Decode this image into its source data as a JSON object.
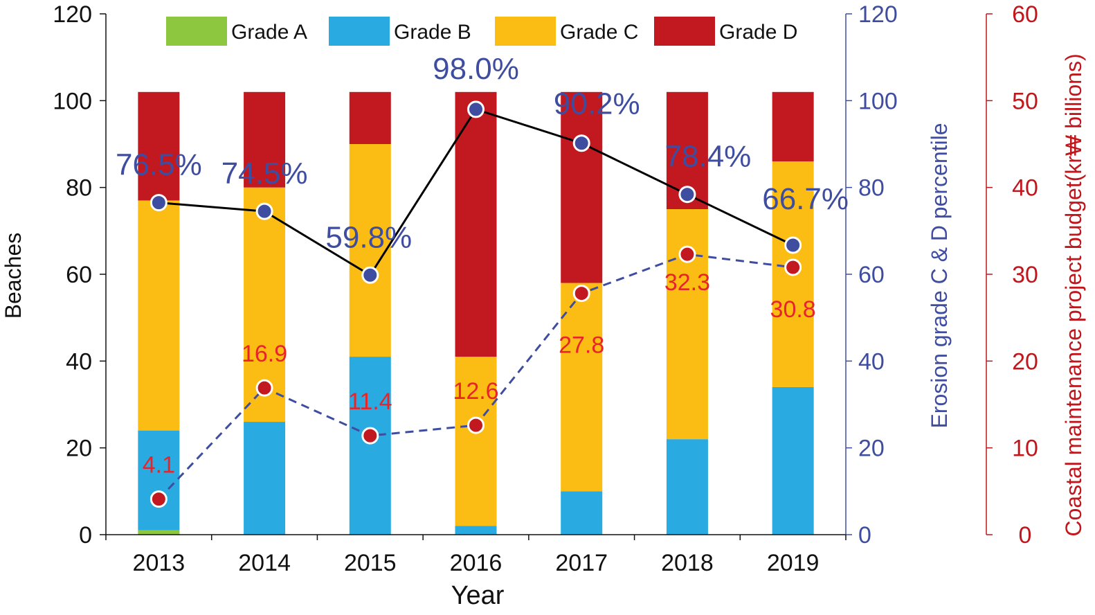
{
  "chart_data": {
    "type": "bar",
    "stacked": true,
    "categories": [
      "2013",
      "2014",
      "2015",
      "2016",
      "2017",
      "2018",
      "2019"
    ],
    "series": [
      {
        "name": "Grade A",
        "color": "#8dc63f",
        "values": [
          1,
          0,
          0,
          0,
          0,
          0,
          0
        ]
      },
      {
        "name": "Grade B",
        "color": "#29abe2",
        "values": [
          23,
          26,
          41,
          2,
          10,
          22,
          34
        ]
      },
      {
        "name": "Grade C",
        "color": "#fbbd13",
        "values": [
          53,
          54,
          49,
          39,
          48,
          53,
          52
        ]
      },
      {
        "name": "Grade D",
        "color": "#c1191f",
        "values": [
          25,
          22,
          12,
          61,
          44,
          27,
          16
        ]
      }
    ],
    "lines": [
      {
        "name": "Erosion grade C & D percentile",
        "axis": "right1",
        "style": "solid",
        "line_color": "#000000",
        "marker_color": "#3f4da0",
        "values": [
          76.5,
          74.5,
          59.8,
          98.0,
          90.2,
          78.4,
          66.7
        ],
        "labels": [
          "76.5%",
          "74.5%",
          "59.8%",
          "98.0%",
          "90.2%",
          "78.4%",
          "66.7%"
        ]
      },
      {
        "name": "Coastal maintenance project budget",
        "axis": "right2",
        "style": "dashed",
        "line_color": "#3f4da0",
        "marker_color": "#c1191f",
        "values": [
          4.1,
          16.9,
          11.4,
          12.6,
          27.8,
          32.3,
          30.8
        ],
        "labels": [
          "4.1",
          "16.9",
          "11.4",
          "12.6",
          "27.8",
          "32.3",
          "30.8"
        ]
      }
    ],
    "xlabel": "Year",
    "ylabel": "Beaches",
    "ylabel_right1": "Erosion grade C & D percentile",
    "ylabel_right2": "Coastal maintenance project budget(kr₩ billions)",
    "ylim": [
      0,
      120
    ],
    "ylim_right1": [
      0,
      120
    ],
    "ylim_right2": [
      0,
      60
    ],
    "yticks": [
      "0",
      "20",
      "40",
      "60",
      "80",
      "100",
      "120"
    ],
    "yticks_right1": [
      "0",
      "20",
      "40",
      "60",
      "80",
      "100",
      "120"
    ],
    "yticks_right2": [
      "0",
      "10",
      "20",
      "30",
      "40",
      "50",
      "60"
    ],
    "legend_position": "top",
    "grid": false,
    "colors": {
      "left_axis": "#111111",
      "right1_axis": "#3f4da0",
      "right2_axis": "#c0161c",
      "pct_label": "#3f4da0",
      "budget_label": "#e8242b"
    }
  }
}
